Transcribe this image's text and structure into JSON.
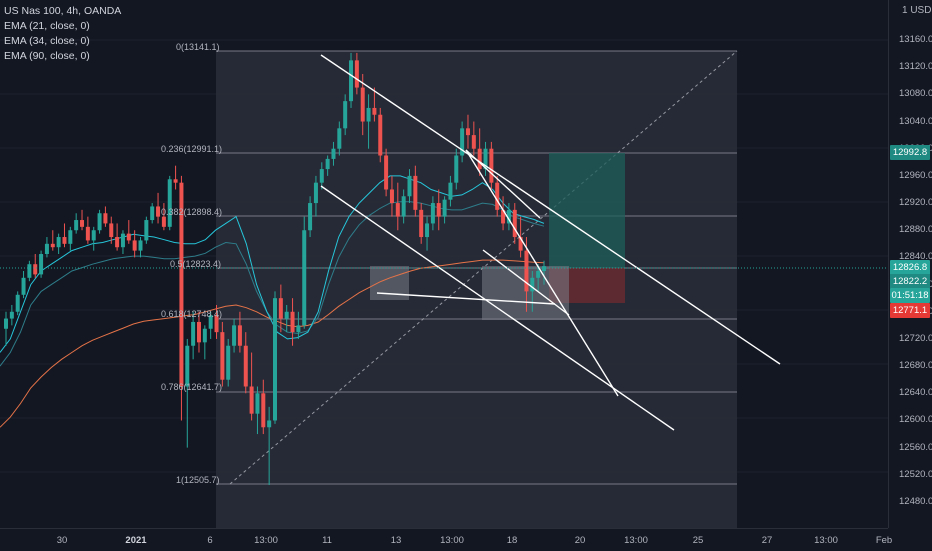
{
  "legend": {
    "symbol": "US Nas 100, 4h, OANDA",
    "ema1": "EMA (21, close, 0)",
    "ema2": "EMA (34, close, 0)",
    "ema3": "EMA (90, close, 0)"
  },
  "price_axis": {
    "currency": "1 USD",
    "ticks": [
      "13160.0",
      "13120.0",
      "13080.0",
      "13040.0",
      "13000.0",
      "12960.0",
      "12920.0",
      "12880.0",
      "12840.0",
      "12800.0",
      "12760.0",
      "12720.0",
      "12680.0",
      "12640.0",
      "12600.0",
      "12560.0",
      "12520.0",
      "12480.0"
    ]
  },
  "time_axis": {
    "ticks": [
      "30",
      "2021",
      "6",
      "13:00",
      "11",
      "13",
      "13:00",
      "18",
      "20",
      "13:00",
      "25",
      "27",
      "13:00",
      "Feb"
    ]
  },
  "badges": {
    "target": "12992.8",
    "last": "12826.8",
    "ema": "12822.2",
    "countdown": "01:51:18",
    "stop": "12771.1"
  },
  "fib_labels": {
    "f0": "0(13141.1)",
    "f236": "0.236(12991.1)",
    "f382": "0.382(12898.4)",
    "f5": "0.5(12823.4)",
    "f618": "0.618(12748.4)",
    "f786": "0.786(12641.7)",
    "f1": "1(12505.7)"
  },
  "colors": {
    "background": "#131722",
    "up": "#26a69a",
    "down": "#ef5350",
    "ema_fast": "#26c6da",
    "ema_mid": "#2e7d8a",
    "ema_slow": "#e57348",
    "target_badge": "#1e8a82",
    "stop_badge": "#e53935"
  },
  "chart_data": {
    "type": "candlestick",
    "symbol": "US Nas 100",
    "timeframe": "4h",
    "ylim": [
      12480,
      13180
    ],
    "candles_ohlc": [
      [
        12735,
        12760,
        12710,
        12750
      ],
      [
        12750,
        12770,
        12740,
        12760
      ],
      [
        12760,
        12790,
        12755,
        12785
      ],
      [
        12785,
        12820,
        12780,
        12810
      ],
      [
        12810,
        12835,
        12805,
        12830
      ],
      [
        12830,
        12845,
        12810,
        12815
      ],
      [
        12815,
        12850,
        12810,
        12845
      ],
      [
        12845,
        12870,
        12840,
        12860
      ],
      [
        12860,
        12880,
        12850,
        12855
      ],
      [
        12855,
        12875,
        12845,
        12870
      ],
      [
        12870,
        12890,
        12855,
        12860
      ],
      [
        12860,
        12885,
        12850,
        12880
      ],
      [
        12880,
        12905,
        12875,
        12895
      ],
      [
        12895,
        12910,
        12880,
        12885
      ],
      [
        12885,
        12900,
        12860,
        12865
      ],
      [
        12865,
        12885,
        12850,
        12880
      ],
      [
        12880,
        12910,
        12875,
        12905
      ],
      [
        12905,
        12915,
        12885,
        12890
      ],
      [
        12890,
        12900,
        12860,
        12870
      ],
      [
        12870,
        12890,
        12850,
        12855
      ],
      [
        12855,
        12880,
        12845,
        12875
      ],
      [
        12875,
        12895,
        12860,
        12865
      ],
      [
        12865,
        12880,
        12840,
        12850
      ],
      [
        12850,
        12870,
        12840,
        12865
      ],
      [
        12865,
        12900,
        12860,
        12895
      ],
      [
        12895,
        12920,
        12890,
        12915
      ],
      [
        12915,
        12935,
        12890,
        12900
      ],
      [
        12900,
        12920,
        12880,
        12885
      ],
      [
        12885,
        12960,
        12880,
        12955
      ],
      [
        12955,
        12975,
        12940,
        12950
      ],
      [
        12950,
        12960,
        12600,
        12650
      ],
      [
        12650,
        12720,
        12560,
        12710
      ],
      [
        12710,
        12760,
        12690,
        12745
      ],
      [
        12745,
        12760,
        12700,
        12715
      ],
      [
        12715,
        12740,
        12690,
        12735
      ],
      [
        12735,
        12760,
        12720,
        12755
      ],
      [
        12755,
        12770,
        12720,
        12730
      ],
      [
        12730,
        12745,
        12650,
        12660
      ],
      [
        12660,
        12720,
        12650,
        12710
      ],
      [
        12710,
        12750,
        12700,
        12740
      ],
      [
        12740,
        12760,
        12700,
        12710
      ],
      [
        12710,
        12730,
        12640,
        12650
      ],
      [
        12650,
        12700,
        12600,
        12610
      ],
      [
        12610,
        12650,
        12580,
        12640
      ],
      [
        12640,
        12660,
        12580,
        12590
      ],
      [
        12590,
        12620,
        12505,
        12600
      ],
      [
        12600,
        12790,
        12595,
        12780
      ],
      [
        12780,
        12800,
        12730,
        12750
      ],
      [
        12750,
        12770,
        12730,
        12760
      ],
      [
        12760,
        12780,
        12710,
        12730
      ],
      [
        12730,
        12760,
        12720,
        12740
      ],
      [
        12740,
        12900,
        12735,
        12880
      ],
      [
        12880,
        12930,
        12870,
        12920
      ],
      [
        12920,
        12960,
        12900,
        12950
      ],
      [
        12950,
        12980,
        12940,
        12970
      ],
      [
        12970,
        12990,
        12960,
        12985
      ],
      [
        12985,
        13010,
        12975,
        13000
      ],
      [
        13000,
        13040,
        12990,
        13030
      ],
      [
        13030,
        13080,
        13020,
        13070
      ],
      [
        13070,
        13141,
        13060,
        13130
      ],
      [
        13130,
        13141,
        13080,
        13090
      ],
      [
        13090,
        13110,
        13020,
        13040
      ],
      [
        13040,
        13080,
        13000,
        13060
      ],
      [
        13060,
        13090,
        13040,
        13050
      ],
      [
        13050,
        13060,
        12980,
        12990
      ],
      [
        12990,
        13000,
        12930,
        12940
      ],
      [
        12940,
        12960,
        12900,
        12920
      ],
      [
        12920,
        12950,
        12880,
        12900
      ],
      [
        12900,
        12940,
        12890,
        12930
      ],
      [
        12930,
        12970,
        12920,
        12960
      ],
      [
        12960,
        12975,
        12900,
        12910
      ],
      [
        12910,
        12920,
        12860,
        12870
      ],
      [
        12870,
        12900,
        12850,
        12890
      ],
      [
        12890,
        12930,
        12880,
        12920
      ],
      [
        12920,
        12940,
        12880,
        12900
      ],
      [
        12900,
        12930,
        12890,
        12925
      ],
      [
        12925,
        12960,
        12915,
        12950
      ],
      [
        12950,
        13000,
        12940,
        12990
      ],
      [
        12990,
        13040,
        12980,
        13030
      ],
      [
        13030,
        13050,
        13000,
        13020
      ],
      [
        13020,
        13040,
        12990,
        13000
      ],
      [
        13000,
        13030,
        12960,
        12970
      ],
      [
        12970,
        13010,
        12960,
        13000
      ],
      [
        13000,
        13010,
        12940,
        12950
      ],
      [
        12950,
        12960,
        12900,
        12910
      ],
      [
        12910,
        12930,
        12880,
        12890
      ],
      [
        12890,
        12920,
        12880,
        12910
      ],
      [
        12910,
        12920,
        12860,
        12870
      ],
      [
        12870,
        12900,
        12840,
        12850
      ],
      [
        12850,
        12870,
        12760,
        12790
      ],
      [
        12790,
        12820,
        12760,
        12810
      ],
      [
        12810,
        12830,
        12790,
        12820
      ],
      [
        12820,
        12835,
        12800,
        12827
      ]
    ],
    "ema21": [
      12700,
      12720,
      12760,
      12800,
      12820,
      12830,
      12840,
      12850,
      12855,
      12860,
      12862,
      12866,
      12870,
      12874,
      12872,
      12870,
      12866,
      12862,
      12860,
      12860,
      12866,
      12880,
      12890,
      12900,
      12860,
      12800,
      12760,
      12730,
      12720,
      12722,
      12730,
      12760,
      12820,
      12870,
      12900,
      12920,
      12935,
      12950,
      12960,
      12960,
      12955,
      12950,
      12940,
      12935,
      12930,
      12932,
      12940,
      12950,
      12940,
      12920,
      12905,
      12900,
      12896,
      12890
    ],
    "ema34": [
      12680,
      12700,
      12730,
      12770,
      12790,
      12800,
      12810,
      12820,
      12825,
      12830,
      12834,
      12838,
      12840,
      12842,
      12842,
      12840,
      12838,
      12838,
      12840,
      12842,
      12846,
      12855,
      12862,
      12860,
      12830,
      12790,
      12760,
      12740,
      12730,
      12728,
      12732,
      12752,
      12800,
      12840,
      12868,
      12888,
      12902,
      12912,
      12920,
      12922,
      12922,
      12920,
      12916,
      12912,
      12910,
      12910,
      12915,
      12920,
      12918,
      12910,
      12900,
      12895,
      12890,
      12886
    ],
    "ema90": [
      12590,
      12605,
      12625,
      12648,
      12664,
      12678,
      12690,
      12700,
      12710,
      12718,
      12724,
      12730,
      12736,
      12742,
      12746,
      12748,
      12750,
      12752,
      12754,
      12756,
      12760,
      12764,
      12768,
      12770,
      12766,
      12760,
      12752,
      12746,
      12740,
      12738,
      12740,
      12745,
      12756,
      12768,
      12778,
      12788,
      12796,
      12804,
      12810,
      12815,
      12820,
      12824,
      12826,
      12828,
      12830,
      12832,
      12834,
      12836,
      12836,
      12836,
      12835,
      12834,
      12833,
      12832
    ],
    "fibonacci": [
      {
        "level": "0",
        "price": 13141.1
      },
      {
        "level": "0.236",
        "price": 12991.1
      },
      {
        "level": "0.382",
        "price": 12898.4
      },
      {
        "level": "0.5",
        "price": 12823.4
      },
      {
        "level": "0.618",
        "price": 12748.4
      },
      {
        "level": "0.786",
        "price": 12641.7
      },
      {
        "level": "1",
        "price": 12505.7
      }
    ],
    "position": {
      "entry": 12826.8,
      "target": 12992.8,
      "stop": 12771.1
    }
  }
}
